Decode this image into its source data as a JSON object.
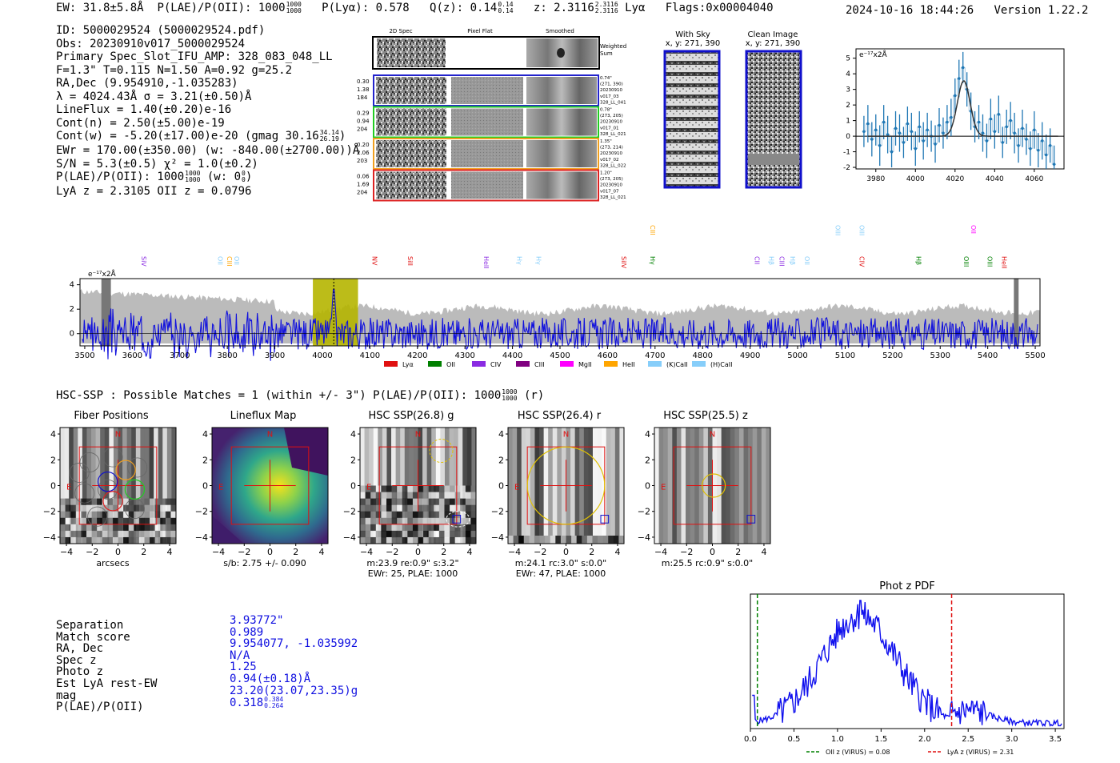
{
  "header": {
    "ew": "EW: 31.8±5.8Å",
    "plae_label": "P(LAE)/P(OII): 1000",
    "plae_hi": "1000",
    "plae_lo": "1000",
    "plya": "P(Lyα): 0.578",
    "qz_label": "Q(z): 0.14",
    "qz_hi": "0.14",
    "qz_lo": "0.14",
    "z_label": "z: 2.3116",
    "z_hi": "2.3116",
    "z_lo": "2.3116",
    "line": "Lyα",
    "flags": "Flags:0x00004040",
    "datetime": "2024-10-16 18:44:26",
    "version": "Version 1.22.2"
  },
  "info": {
    "id": "ID: 5000029524 (5000029524.pdf)",
    "obs": "Obs: 20230910v017_5000029524",
    "primary": "Primary Spec_Slot_IFU_AMP: 328_083_048_LL",
    "fit": "F=1.3\"  T=0.115  N=1.50  A=0.92  g=25.2",
    "radec": "RA,Dec (9.954910,-1.035283)",
    "lambda": "λ = 4024.43Å  σ = 3.21(±0.50)Å",
    "lineflux": "LineFlux = 1.40(±0.20)e-16",
    "contn": "Cont(n) = 2.50(±5.00)e-19",
    "contw": "Cont(w) = -5.20(±17.00)e-20 (gmag 30.16",
    "contw_hi": "34.14",
    "contw_lo": "26.19",
    "contw_end": ")",
    "ewr": "EWr = 170.00(±350.00) (w: -840.00(±2700.00))Å",
    "sn": "S/N = 5.3(±0.5)  χ² = 1.0(±0.2)",
    "plae": "P(LAE)/P(OII): 1000",
    "plae_hi": "1000",
    "plae_lo": "1000",
    "plae_w": "(w: 0",
    "plae_w_hi": "0",
    "plae_w_lo": "0",
    "plae_w_end": ")",
    "lyaz": "LyA z = 2.3105  OII z = 0.0796"
  },
  "cutouts": {
    "col_labels": [
      "2D Spec",
      "Pixel Flat",
      "Smoothed"
    ],
    "weighted": "Weighted Sum",
    "fibers": [
      {
        "vals": [
          "0.30",
          "1.38",
          "184"
        ],
        "meta": [
          "0.74\"",
          "(271, 390)",
          "20230910",
          "v017_03",
          "328_LL_041"
        ],
        "color": "#2222cc"
      },
      {
        "vals": [
          "0.29",
          "0.94",
          "204"
        ],
        "meta": [
          "0.78\"",
          "(273, 205)",
          "20230910",
          "v017_01",
          "328_LL_021"
        ],
        "color": "#22cc22"
      },
      {
        "vals": [
          "0.20",
          "2.06",
          "203"
        ],
        "meta": [
          "1.35\"",
          "(273, 214)",
          "20230910",
          "v017_02",
          "328_LL_022"
        ],
        "color": "#f0a020"
      },
      {
        "vals": [
          "0.06",
          "1.69",
          "204"
        ],
        "meta": [
          "1.20\"",
          "(273, 205)",
          "20230910",
          "v017_07",
          "328_LL_021"
        ],
        "color": "#dd2222"
      }
    ],
    "with_sky": "With Sky",
    "with_sky_xy": "x, y: 271, 390",
    "clean": "Clean Image",
    "clean_xy": "x, y: 271, 390"
  },
  "legend": {
    "items": [
      {
        "label": "Lyα",
        "color": "#e01010"
      },
      {
        "label": "OII",
        "color": "#008000"
      },
      {
        "label": "CIV",
        "color": "#8a2be2"
      },
      {
        "label": "CIII",
        "color": "#800080"
      },
      {
        "label": "MgII",
        "color": "#ff00ff"
      },
      {
        "label": "HeII",
        "color": "#ffa500"
      },
      {
        "label": "(K)CaII",
        "color": "#87cefa"
      },
      {
        "label": "(H)CaII",
        "color": "#87cefa"
      }
    ]
  },
  "hsc": {
    "header": "HSC-SSP : Possible Matches = 1 (within +/- 3\")  P(LAE)/P(OII): 1000",
    "header_hi": "1000",
    "header_lo": "1000",
    "header_end": "(r)",
    "panels": [
      {
        "title": "Fiber Positions",
        "cap1": "arcsecs",
        "cap2": ""
      },
      {
        "title": "Lineflux Map",
        "cap1": "s/b: 2.75 +/- 0.090",
        "cap2": ""
      },
      {
        "title": "HSC SSP(26.8) g",
        "cap1": "m:23.9  re:0.9\"  s:3.2\"",
        "cap2": "EWr: 25, PLAE: 1000"
      },
      {
        "title": "HSC SSP(26.4) r",
        "cap1": "m:24.1 rc:3.0\"  s:0.0\"",
        "cap2": "EWr: 47, PLAE: 1000"
      },
      {
        "title": "HSC SSP(25.5) z",
        "cap1": "m:25.5 rc:0.9\"  s:0.0\"",
        "cap2": ""
      }
    ],
    "n_label": "N",
    "e_label": "E"
  },
  "match": {
    "labels": [
      "Separation",
      "Match score",
      "RA, Dec",
      "Spec z",
      "Photo z",
      "Est LyA rest-EW",
      "mag",
      "P(LAE)/P(OII)"
    ],
    "values": [
      "3.93772\"",
      "0.989",
      "9.954077, -1.035992",
      "N/A",
      "1.25",
      "0.94(±0.18)Å",
      "23.20(23.07,23.35)g",
      "0.318"
    ],
    "plae_hi": "0.384",
    "plae_lo": "0.264"
  },
  "chart_data": [
    {
      "type": "line",
      "name": "line-fit",
      "ylabel": "e⁻¹⁷x2Å",
      "xlim": [
        3970,
        4075
      ],
      "ylim": [
        -2.1,
        5.6
      ],
      "xticks": [
        3980,
        4000,
        4020,
        4040,
        4060
      ],
      "yticks": [
        -2,
        -1,
        0,
        1,
        2,
        3,
        4,
        5
      ],
      "x": [
        3974,
        3976,
        3978,
        3980,
        3982,
        3984,
        3986,
        3988,
        3990,
        3992,
        3994,
        3996,
        3998,
        4000,
        4002,
        4004,
        4006,
        4008,
        4010,
        4012,
        4014,
        4016,
        4018,
        4020,
        4022,
        4024,
        4026,
        4028,
        4030,
        4032,
        4034,
        4036,
        4038,
        4040,
        4042,
        4044,
        4046,
        4048,
        4050,
        4052,
        4054,
        4056,
        4058,
        4060,
        4062,
        4064,
        4066,
        4068,
        4070
      ],
      "y": [
        0.3,
        0.8,
        -0.2,
        0.4,
        -0.6,
        0.9,
        0.1,
        -1.0,
        0.5,
        0.2,
        -0.4,
        0.8,
        0.3,
        -0.8,
        0.6,
        -0.3,
        0.4,
        0.0,
        -0.5,
        0.7,
        0.2,
        0.9,
        1.2,
        2.6,
        3.7,
        4.4,
        3.0,
        1.6,
        0.6,
        0.9,
        0.2,
        -0.3,
        1.1,
        0.3,
        1.4,
        -0.4,
        0.6,
        1.0,
        0.2,
        -0.6,
        0.5,
        -0.2,
        -0.8,
        0.4,
        -0.9,
        -0.3,
        -1.2,
        -0.6,
        -1.8
      ],
      "err": [
        1.0,
        1.2,
        1.1,
        1.0,
        1.3,
        1.1,
        1.2,
        1.0,
        1.1,
        1.2,
        1.0,
        1.1,
        1.2,
        1.1,
        1.0,
        1.2,
        1.1,
        1.0,
        1.2,
        1.1,
        1.0,
        1.1,
        1.2,
        1.1,
        1.2,
        1.0,
        1.1,
        1.2,
        1.0,
        1.1,
        1.2,
        1.1,
        1.3,
        1.1,
        1.2,
        1.0,
        1.1,
        1.2,
        1.3,
        1.1,
        1.2,
        1.0,
        1.1,
        1.2,
        1.1,
        1.2,
        1.3,
        1.1,
        1.2
      ],
      "fit": {
        "center": 4024.4,
        "sigma": 3.21,
        "amp": 3.55
      }
    },
    {
      "type": "line",
      "name": "full-spectrum",
      "ylabel": "e⁻¹⁷x2Å",
      "xlim": [
        3490,
        5510
      ],
      "ylim": [
        -1.0,
        4.5
      ],
      "xticks": [
        3500,
        3600,
        3700,
        3800,
        3900,
        4000,
        4100,
        4200,
        4300,
        4400,
        4500,
        4600,
        4700,
        4800,
        4900,
        5000,
        5100,
        5200,
        5300,
        5400,
        5500
      ],
      "yticks": [
        0,
        2,
        4
      ],
      "highlight": [
        3980,
        4075
      ],
      "line_labels": [
        {
          "label": "SiV",
          "x": 3620,
          "color": "#8a2be2",
          "tier": 0
        },
        {
          "label": "OII",
          "x": 3780,
          "color": "#87cefa",
          "tier": 0
        },
        {
          "label": "CIII",
          "x": 3800,
          "color": "#ffa500",
          "tier": 0
        },
        {
          "label": "OII",
          "x": 3815,
          "color": "#87cefa",
          "tier": 0
        },
        {
          "label": "NV",
          "x": 4105,
          "color": "#e01010",
          "tier": 0
        },
        {
          "label": "SiII",
          "x": 4180,
          "color": "#e01010",
          "tier": 0
        },
        {
          "label": "HeII",
          "x": 4340,
          "color": "#8a2be2",
          "tier": 0
        },
        {
          "label": "Hγ",
          "x": 4410,
          "color": "#87cefa",
          "tier": 0
        },
        {
          "label": "Hγ",
          "x": 4450,
          "color": "#87cefa",
          "tier": 0
        },
        {
          "label": "SiIV",
          "x": 4630,
          "color": "#e01010",
          "tier": 0
        },
        {
          "label": "CIII",
          "x": 4690,
          "color": "#ffa500",
          "tier": 1
        },
        {
          "label": "Hγ",
          "x": 4690,
          "color": "#008000",
          "tier": 0
        },
        {
          "label": "CII",
          "x": 4910,
          "color": "#8a2be2",
          "tier": 0
        },
        {
          "label": "Hβ",
          "x": 4940,
          "color": "#87cefa",
          "tier": 0
        },
        {
          "label": "CIII",
          "x": 4962,
          "color": "#8a2be2",
          "tier": 0
        },
        {
          "label": "Hβ",
          "x": 4985,
          "color": "#87cefa",
          "tier": 0
        },
        {
          "label": "OII",
          "x": 5015,
          "color": "#87cefa",
          "tier": 0
        },
        {
          "label": "OIII",
          "x": 5080,
          "color": "#87cefa",
          "tier": 1
        },
        {
          "label": "OIII",
          "x": 5130,
          "color": "#87cefa",
          "tier": 1
        },
        {
          "label": "CIV",
          "x": 5130,
          "color": "#e01010",
          "tier": 0
        },
        {
          "label": "Hβ",
          "x": 5250,
          "color": "#008000",
          "tier": 0
        },
        {
          "label": "OII",
          "x": 5365,
          "color": "#ff00ff",
          "tier": 1
        },
        {
          "label": "OIII",
          "x": 5350,
          "color": "#008000",
          "tier": 0
        },
        {
          "label": "OIII",
          "x": 5400,
          "color": "#008000",
          "tier": 0
        },
        {
          "label": "HeII",
          "x": 5430,
          "color": "#e01010",
          "tier": 0
        }
      ]
    },
    {
      "type": "line",
      "name": "phot-z-pdf",
      "title": "Phot z PDF",
      "xlim": [
        0.0,
        3.6
      ],
      "xticks": [
        0.0,
        0.5,
        1.0,
        1.5,
        2.0,
        2.5,
        3.0,
        3.5
      ],
      "oii_z": 0.08,
      "lya_z": 2.31,
      "legend": [
        "OII z (VIRUS) = 0.08",
        "LyA z (VIRUS) = 2.31"
      ]
    }
  ]
}
